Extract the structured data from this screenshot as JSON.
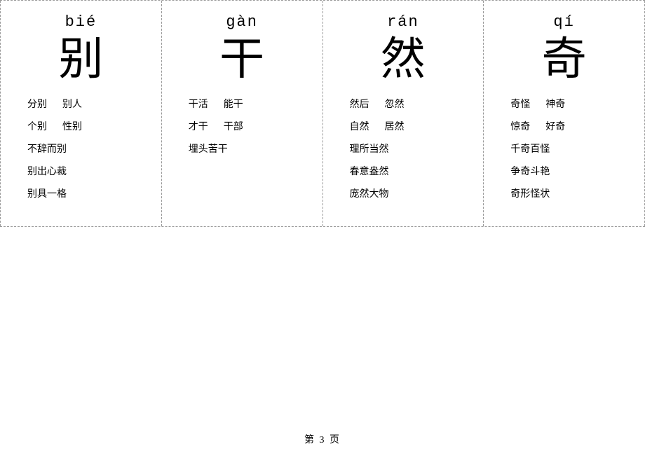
{
  "page_label": "第 3 页",
  "border_style": "dashed",
  "border_color": "#999999",
  "background_color": "#ffffff",
  "pinyin_fontsize": 22,
  "hanzi_fontsize": 64,
  "word_fontsize": 14,
  "hanzi_font": "KaiTi",
  "body_font": "SimSun",
  "cards": [
    {
      "pinyin": "bié",
      "hanzi": "别",
      "rows": [
        [
          "分别",
          "别人"
        ],
        [
          "个别",
          "性别"
        ],
        [
          "不辞而别"
        ],
        [
          "别出心裁"
        ],
        [
          "别具一格"
        ]
      ]
    },
    {
      "pinyin": "gàn",
      "hanzi": "干",
      "rows": [
        [
          "干活",
          "能干"
        ],
        [
          "才干",
          "干部"
        ],
        [
          "埋头苦干"
        ]
      ]
    },
    {
      "pinyin": "rán",
      "hanzi": "然",
      "rows": [
        [
          "然后",
          "忽然"
        ],
        [
          "自然",
          "居然"
        ],
        [
          "理所当然"
        ],
        [
          "春意盎然"
        ],
        [
          "庞然大物"
        ]
      ]
    },
    {
      "pinyin": "qí",
      "hanzi": "奇",
      "rows": [
        [
          "奇怪",
          "神奇"
        ],
        [
          "惊奇",
          "好奇"
        ],
        [
          "千奇百怪"
        ],
        [
          "争奇斗艳"
        ],
        [
          "奇形怪状"
        ]
      ]
    }
  ]
}
